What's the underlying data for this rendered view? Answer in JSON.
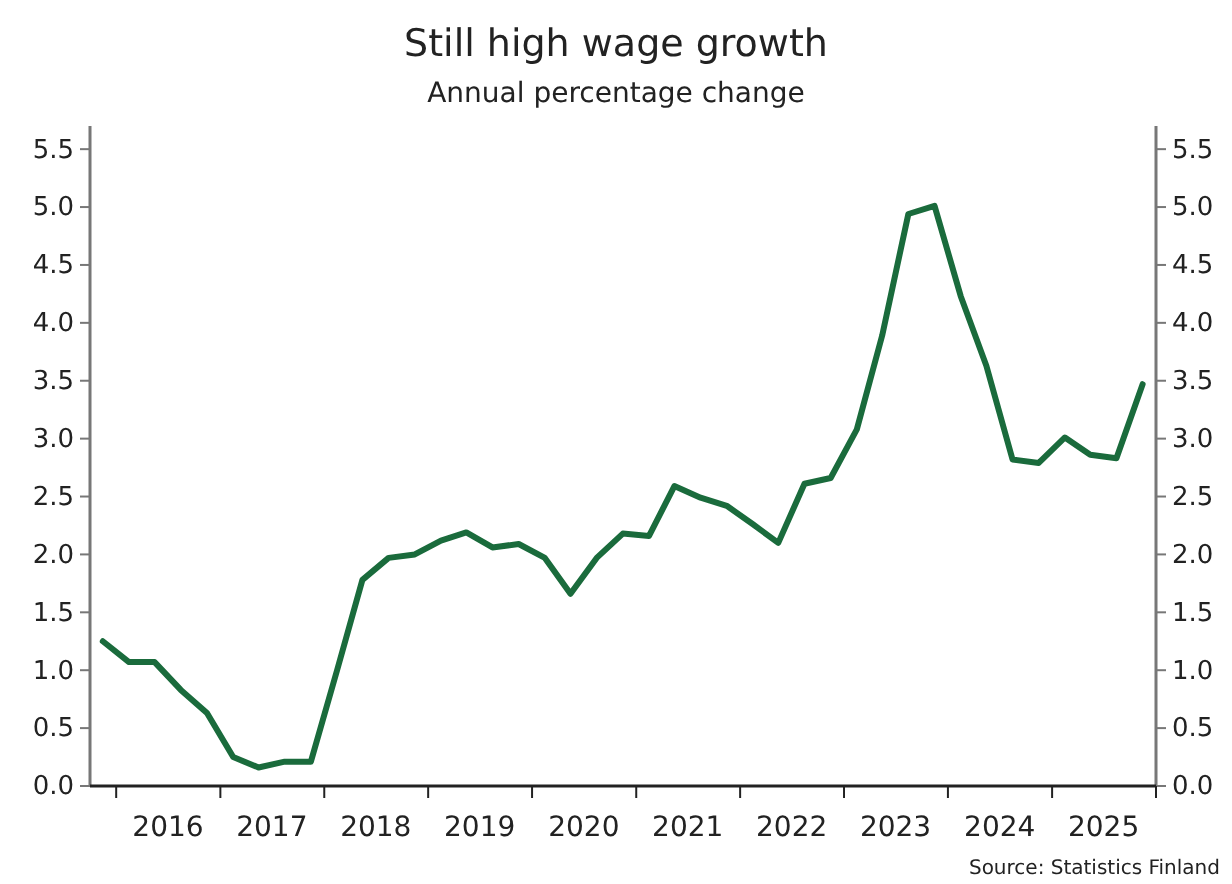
{
  "chart_data": {
    "type": "line",
    "title": "Still high wage growth",
    "subtitle": "Annual percentage change",
    "annotations": [
      "Source: Statistics Finland"
    ],
    "x": [
      "2015-11-15",
      "2016-02-15",
      "2016-05-15",
      "2016-08-15",
      "2016-11-15",
      "2017-02-15",
      "2017-05-15",
      "2017-08-15",
      "2017-11-15",
      "2018-02-15",
      "2018-05-15",
      "2018-08-15",
      "2018-11-15",
      "2019-02-15",
      "2019-05-15",
      "2019-08-15",
      "2019-11-15",
      "2020-02-15",
      "2020-05-15",
      "2020-08-15",
      "2020-11-15",
      "2021-02-15",
      "2021-05-15",
      "2021-08-15",
      "2021-11-15",
      "2022-02-15",
      "2022-05-15",
      "2022-08-15",
      "2022-11-15",
      "2023-02-15",
      "2023-05-15",
      "2023-08-15",
      "2023-11-15",
      "2024-02-15",
      "2024-05-15",
      "2024-08-15",
      "2024-11-15",
      "2025-02-15",
      "2025-05-15",
      "2025-08-15",
      "2025-11-15"
    ],
    "series": [
      {
        "color": "#1a6b3c",
        "values": [
          1.25,
          1.07,
          1.07,
          0.83,
          0.63,
          0.25,
          0.16,
          0.21,
          0.21,
          1.0,
          1.78,
          1.97,
          2.0,
          2.12,
          2.19,
          2.06,
          2.09,
          1.97,
          1.66,
          1.97,
          2.18,
          2.16,
          2.59,
          2.49,
          2.42,
          2.26,
          2.1,
          2.61,
          2.66,
          3.08,
          3.89,
          4.94,
          5.01,
          4.23,
          3.63,
          2.82,
          2.79,
          3.01,
          2.86,
          2.83,
          3.47
        ]
      }
    ],
    "xlim": [
      "2015-10-01",
      "2026-01-01"
    ],
    "xticks": [
      {
        "value": "2016-01-01",
        "label": null
      },
      {
        "value": "2016-07-01",
        "label": "2016"
      },
      {
        "value": "2017-01-01",
        "label": null
      },
      {
        "value": "2017-07-01",
        "label": "2017"
      },
      {
        "value": "2018-01-01",
        "label": null
      },
      {
        "value": "2018-07-01",
        "label": "2018"
      },
      {
        "value": "2019-01-01",
        "label": null
      },
      {
        "value": "2019-07-01",
        "label": "2019"
      },
      {
        "value": "2020-01-01",
        "label": null
      },
      {
        "value": "2020-07-01",
        "label": "2020"
      },
      {
        "value": "2021-01-01",
        "label": null
      },
      {
        "value": "2021-07-01",
        "label": "2021"
      },
      {
        "value": "2022-01-01",
        "label": null
      },
      {
        "value": "2022-07-01",
        "label": "2022"
      },
      {
        "value": "2023-01-01",
        "label": null
      },
      {
        "value": "2023-07-01",
        "label": "2023"
      },
      {
        "value": "2024-01-01",
        "label": null
      },
      {
        "value": "2024-07-01",
        "label": "2024"
      },
      {
        "value": "2025-01-01",
        "label": null
      },
      {
        "value": "2025-07-01",
        "label": "2025"
      },
      {
        "value": "2026-01-01",
        "label": null
      }
    ],
    "ylim": [
      0,
      5.7
    ],
    "yticks": [
      {
        "value": 0,
        "label": "0.0"
      },
      {
        "value": 0.5,
        "label": "0.5"
      },
      {
        "value": 1,
        "label": "1.0"
      },
      {
        "value": 1.5,
        "label": "1.5"
      },
      {
        "value": 2,
        "label": "2.0"
      },
      {
        "value": 2.5,
        "label": "2.5"
      },
      {
        "value": 3,
        "label": "3.0"
      },
      {
        "value": 3.5,
        "label": "3.5"
      },
      {
        "value": 4,
        "label": "4.0"
      },
      {
        "value": 4.5,
        "label": "4.5"
      },
      {
        "value": 5,
        "label": "5.0"
      },
      {
        "value": 5.5,
        "label": "5.5"
      }
    ],
    "y2lim": [
      0,
      5.7
    ],
    "y2ticks": [
      {
        "value": 0,
        "label": "0.0"
      },
      {
        "value": 0.5,
        "label": "0.5"
      },
      {
        "value": 1,
        "label": "1.0"
      },
      {
        "value": 1.5,
        "label": "1.5"
      },
      {
        "value": 2,
        "label": "2.0"
      },
      {
        "value": 2.5,
        "label": "2.5"
      },
      {
        "value": 3,
        "label": "3.0"
      },
      {
        "value": 3.5,
        "label": "3.5"
      },
      {
        "value": 4,
        "label": "4.0"
      },
      {
        "value": 4.5,
        "label": "4.5"
      },
      {
        "value": 5,
        "label": "5.0"
      },
      {
        "value": 5.5,
        "label": "5.5"
      }
    ],
    "grid": false,
    "line_style": "solid",
    "marker": "none"
  }
}
